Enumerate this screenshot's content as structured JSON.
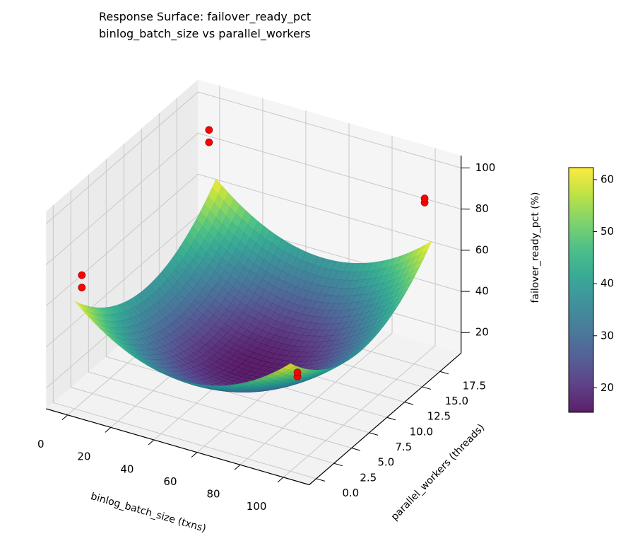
{
  "chart_data": {
    "type": "surface3d",
    "title": "Response Surface: failover_ready_pct",
    "subtitle": "binlog_batch_size vs parallel_workers",
    "xlabel": "binlog_batch_size (txns)",
    "ylabel": "parallel_workers (threads)",
    "zlabel": "failover_ready_pct (%)",
    "xlim": [
      -10,
      112
    ],
    "ylim": [
      -1,
      20.5
    ],
    "zlim": [
      10,
      106
    ],
    "xticks": [
      "0",
      "20",
      "40",
      "60",
      "80",
      "100"
    ],
    "yticks": [
      "0.0",
      "2.5",
      "5.0",
      "7.5",
      "10.0",
      "12.5",
      "15.0",
      "17.5"
    ],
    "zticks": [
      "20",
      "40",
      "60",
      "80",
      "100"
    ],
    "view": {
      "elev": 30,
      "azim": -60
    },
    "colormap": "viridis",
    "surface": {
      "model": "quadratic bowl",
      "min": 15.3,
      "max": 62.3,
      "center": [
        50,
        10
      ],
      "x_range": [
        0,
        100
      ],
      "y_range": [
        0,
        20
      ]
    },
    "points_color": "#ff0000",
    "points": [
      {
        "x": 0,
        "y": 1,
        "z": 72
      },
      {
        "x": 0,
        "y": 1,
        "z": 66
      },
      {
        "x": 0,
        "y": 19,
        "z": 89
      },
      {
        "x": 0,
        "y": 19,
        "z": 83
      },
      {
        "x": 100,
        "y": 1,
        "z": 55
      },
      {
        "x": 100,
        "y": 1,
        "z": 53
      },
      {
        "x": 100,
        "y": 19,
        "z": 86
      },
      {
        "x": 100,
        "y": 19,
        "z": 84
      }
    ],
    "colorbar": {
      "range": [
        15.3,
        62.3
      ],
      "ticks": [
        "20",
        "30",
        "40",
        "50",
        "60"
      ]
    },
    "grid": true
  }
}
